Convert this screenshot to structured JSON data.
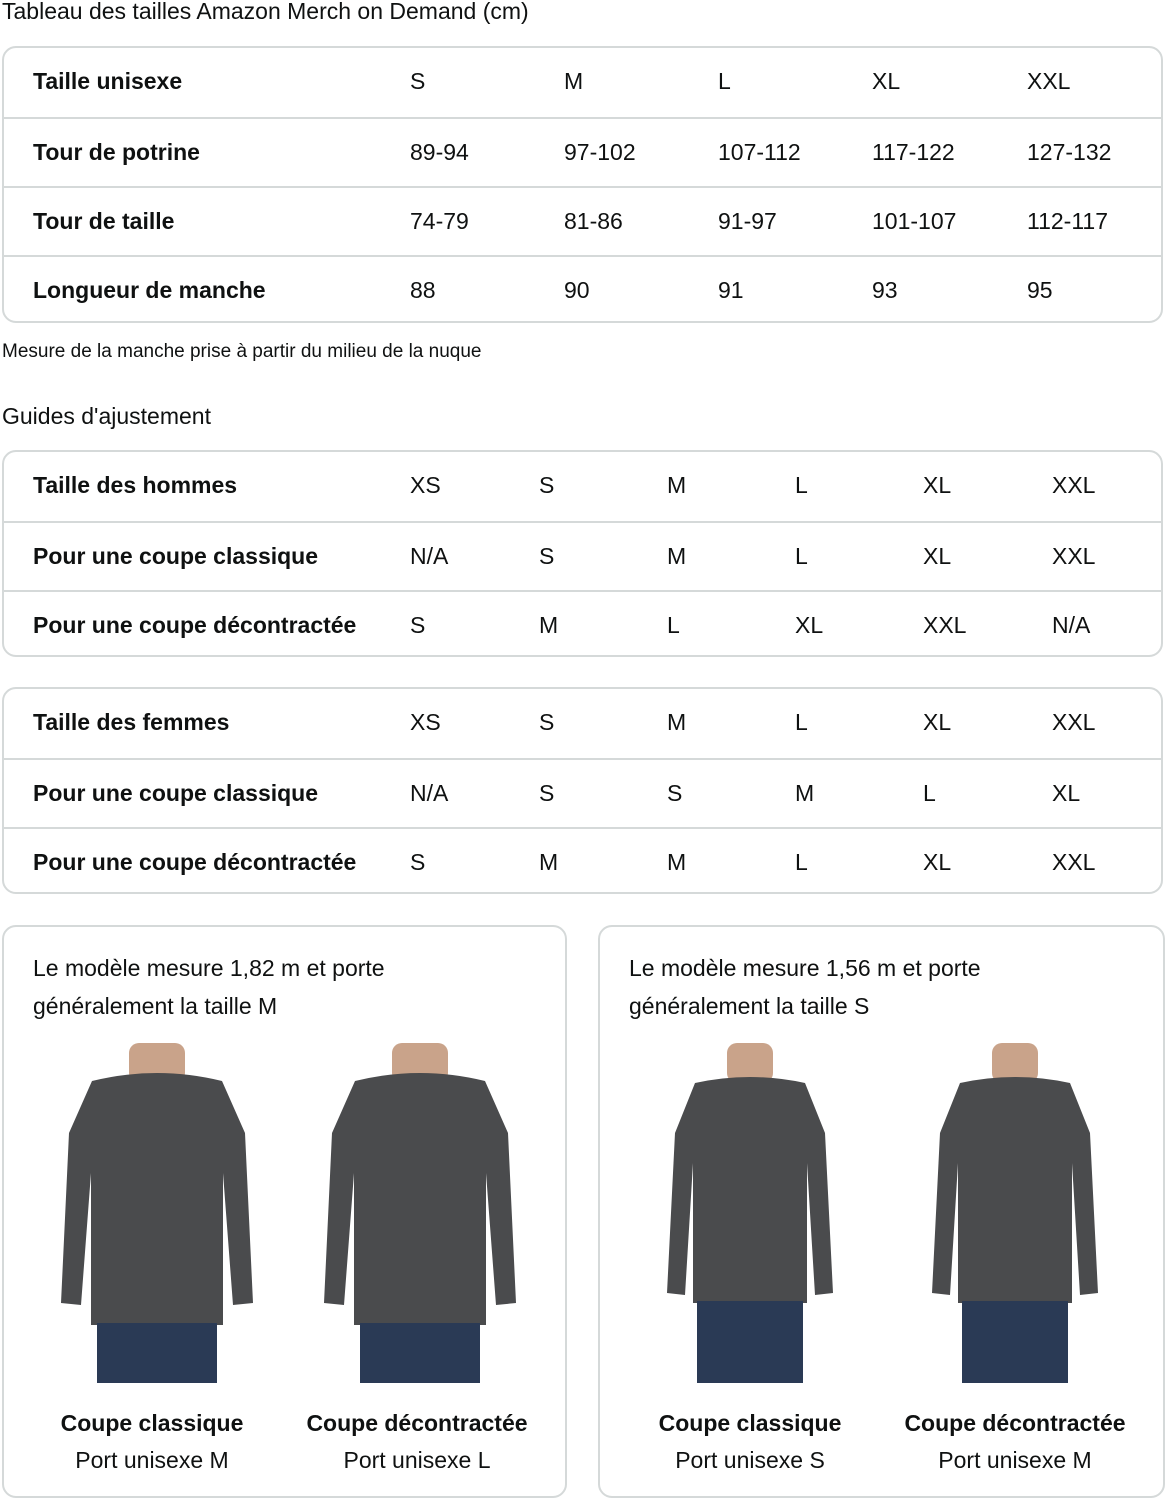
{
  "title": "Tableau des tailles Amazon Merch on Demand (cm)",
  "unisex_table": {
    "rows": [
      {
        "label": "Taille unisexe",
        "values": [
          "S",
          "M",
          "L",
          "XL",
          "XXL"
        ]
      },
      {
        "label": "Tour de potrine",
        "values": [
          "89-94",
          "97-102",
          "107-112",
          "117-122",
          "127-132"
        ]
      },
      {
        "label": "Tour de taille",
        "values": [
          "74-79",
          "81-86",
          "91-97",
          "101-107",
          "112-117"
        ]
      },
      {
        "label": "Longueur de manche",
        "values": [
          "88",
          "90",
          "91",
          "93",
          "95"
        ]
      }
    ]
  },
  "sleeve_note": "Mesure de la manche prise à partir du milieu de la nuque",
  "fit_title": "Guides d'ajustement",
  "men_table": {
    "rows": [
      {
        "label": "Taille des hommes",
        "values": [
          "XS",
          "S",
          "M",
          "L",
          "XL",
          "XXL"
        ]
      },
      {
        "label": "Pour une coupe classique",
        "values": [
          "N/A",
          "S",
          "M",
          "L",
          "XL",
          "XXL"
        ]
      },
      {
        "label": "Pour une coupe décontractée",
        "values": [
          "S",
          "M",
          "L",
          "XL",
          "XXL",
          "N/A"
        ]
      }
    ]
  },
  "women_table": {
    "rows": [
      {
        "label": "Taille des femmes",
        "values": [
          "XS",
          "S",
          "M",
          "L",
          "XL",
          "XXL"
        ]
      },
      {
        "label": "Pour une coupe classique",
        "values": [
          "N/A",
          "S",
          "S",
          "M",
          "L",
          "XL"
        ]
      },
      {
        "label": "Pour une coupe décontractée",
        "values": [
          "S",
          "M",
          "M",
          "L",
          "XL",
          "XXL"
        ]
      }
    ]
  },
  "cards": [
    {
      "desc": "Le modèle mesure 1,82 m et porte généralement la taille M",
      "models": [
        {
          "fit": "Coupe classique",
          "wear": "Port unisexe M"
        },
        {
          "fit": "Coupe décontractée",
          "wear": "Port unisexe L"
        }
      ]
    },
    {
      "desc": "Le modèle mesure 1,56 m et porte généralement la taille S",
      "models": [
        {
          "fit": "Coupe classique",
          "wear": "Port unisexe S"
        },
        {
          "fit": "Coupe décontractée",
          "wear": "Port unisexe M"
        }
      ]
    }
  ],
  "colors": {
    "border": "#d5d9d9",
    "shirt": "#4a4b4d",
    "jeans": "#2a3a55"
  }
}
